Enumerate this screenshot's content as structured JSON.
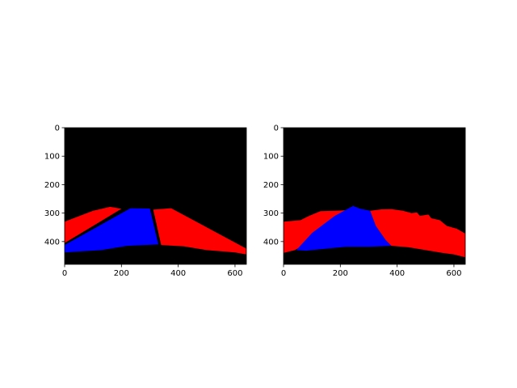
{
  "chart_data": [
    {
      "type": "heatmap",
      "description_role": "segmentation-mask",
      "xlim": [
        0,
        640
      ],
      "ylim": [
        480,
        0
      ],
      "xticks": [
        0,
        200,
        400,
        600
      ],
      "yticks": [
        0,
        100,
        200,
        300,
        400
      ],
      "background_color": "#000000",
      "regions": [
        {
          "name": "red-left",
          "color": "#ff0000",
          "polygon": [
            [
              0,
              330
            ],
            [
              100,
              292
            ],
            [
              160,
              278
            ],
            [
              200,
              285
            ],
            [
              0,
              405
            ]
          ]
        },
        {
          "name": "blue-center",
          "color": "#0000ff",
          "polygon": [
            [
              0,
              412
            ],
            [
              232,
              283
            ],
            [
              300,
              284
            ],
            [
              330,
              410
            ],
            [
              220,
              415
            ],
            [
              130,
              430
            ],
            [
              0,
              438
            ]
          ]
        },
        {
          "name": "red-right",
          "color": "#ff0000",
          "polygon": [
            [
              312,
              288
            ],
            [
              375,
              283
            ],
            [
              640,
              425
            ],
            [
              640,
              445
            ],
            [
              600,
              438
            ],
            [
              500,
              430
            ],
            [
              420,
              417
            ],
            [
              340,
              412
            ]
          ]
        }
      ]
    },
    {
      "type": "heatmap",
      "description_role": "segmentation-mask",
      "xlim": [
        0,
        640
      ],
      "ylim": [
        480,
        0
      ],
      "xticks": [
        0,
        200,
        400,
        600
      ],
      "yticks": [
        0,
        100,
        200,
        300,
        400
      ],
      "background_color": "#000000",
      "regions": [
        {
          "name": "red-left",
          "color": "#ff0000",
          "polygon": [
            [
              0,
              330
            ],
            [
              60,
              325
            ],
            [
              90,
              310
            ],
            [
              130,
              293
            ],
            [
              180,
              292
            ],
            [
              220,
              290
            ],
            [
              165,
              340
            ],
            [
              100,
              395
            ],
            [
              40,
              430
            ],
            [
              0,
              440
            ]
          ]
        },
        {
          "name": "blue-center",
          "color": "#0000ff",
          "polygon": [
            [
              45,
              430
            ],
            [
              100,
              370
            ],
            [
              180,
              310
            ],
            [
              245,
              275
            ],
            [
              270,
              285
            ],
            [
              305,
              292
            ],
            [
              325,
              345
            ],
            [
              360,
              395
            ],
            [
              380,
              415
            ],
            [
              300,
              418
            ],
            [
              220,
              418
            ],
            [
              150,
              425
            ],
            [
              80,
              432
            ]
          ]
        },
        {
          "name": "red-right",
          "color": "#ff0000",
          "polygon": [
            [
              305,
              292
            ],
            [
              345,
              287
            ],
            [
              380,
              286
            ],
            [
              420,
              292
            ],
            [
              450,
              300
            ],
            [
              470,
              298
            ],
            [
              480,
              310
            ],
            [
              510,
              305
            ],
            [
              520,
              318
            ],
            [
              550,
              325
            ],
            [
              575,
              345
            ],
            [
              610,
              355
            ],
            [
              640,
              372
            ],
            [
              640,
              455
            ],
            [
              600,
              445
            ],
            [
              560,
              440
            ],
            [
              500,
              430
            ],
            [
              440,
              420
            ],
            [
              380,
              415
            ],
            [
              360,
              395
            ],
            [
              325,
              345
            ]
          ]
        }
      ]
    }
  ]
}
